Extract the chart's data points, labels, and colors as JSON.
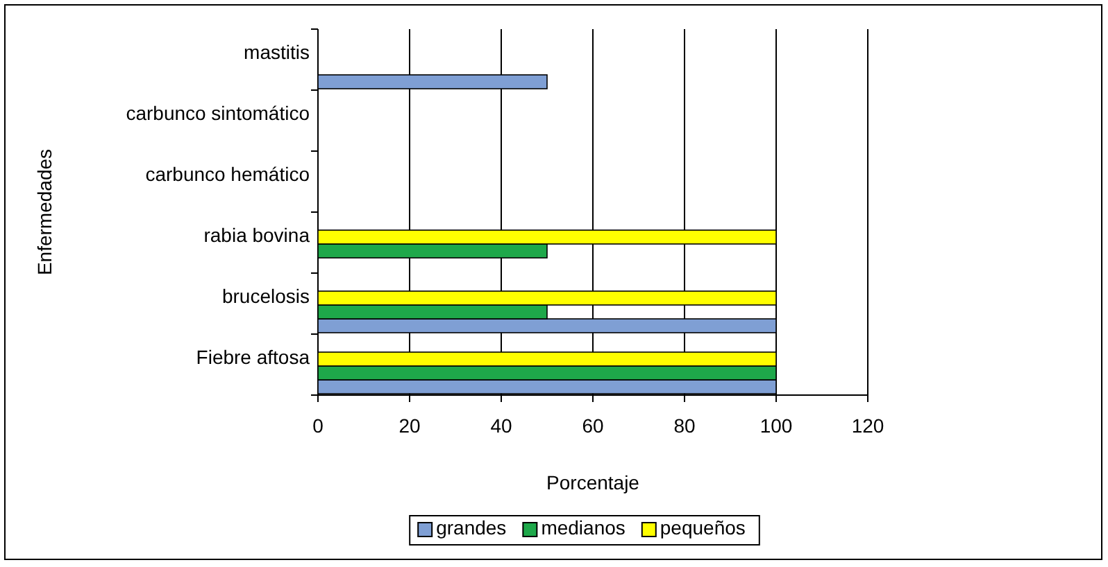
{
  "chart_data": {
    "type": "bar",
    "orientation": "horizontal",
    "xlabel": "Porcentaje",
    "ylabel": "Enfermedades",
    "categories": [
      "mastitis",
      "carbunco sintomático",
      "carbunco hemático",
      "rabia bovina",
      "brucelosis",
      "Fiebre aftosa"
    ],
    "series": [
      {
        "name": "grandes",
        "color": "#7f9fd4",
        "values": [
          50,
          0,
          0,
          0,
          100,
          100
        ]
      },
      {
        "name": "medianos",
        "color": "#1ea84a",
        "values": [
          0,
          0,
          0,
          50,
          50,
          100
        ]
      },
      {
        "name": "pequeños",
        "color": "#ffff00",
        "values": [
          0,
          0,
          0,
          100,
          100,
          100
        ]
      }
    ],
    "xlim": [
      0,
      120
    ],
    "xticks": [
      0,
      20,
      40,
      60,
      80,
      100,
      120
    ],
    "grid": "x",
    "legend": "bottom"
  }
}
